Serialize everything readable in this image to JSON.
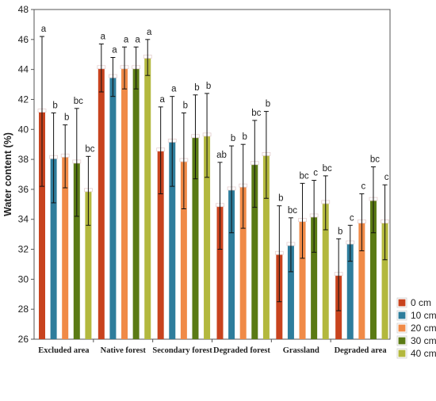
{
  "chart_data": {
    "type": "bar",
    "title": "",
    "xlabel": "",
    "ylabel": "Water content (%)",
    "ylim": [
      26,
      48
    ],
    "yticks": [
      26,
      28,
      30,
      32,
      34,
      36,
      38,
      40,
      42,
      44,
      46,
      48
    ],
    "grid": false,
    "legend_position": "bottom-right",
    "categories": [
      "Excluded area",
      "Native forest",
      "Secondary forest",
      "Degraded forest",
      "Grassland",
      "Degraded area"
    ],
    "series": [
      {
        "name": "0 cm",
        "color": "#c8431e",
        "values": [
          41.2,
          44.1,
          38.6,
          34.9,
          31.7,
          30.3
        ],
        "errors": [
          5.0,
          1.6,
          2.9,
          2.9,
          3.2,
          2.4
        ],
        "letters": [
          "a",
          "a",
          "a",
          "ab",
          "b",
          "b"
        ]
      },
      {
        "name": "10 cm",
        "color": "#2e7d9c",
        "values": [
          38.1,
          43.5,
          39.2,
          36.0,
          32.3,
          32.4
        ],
        "errors": [
          3.0,
          1.3,
          3.0,
          2.9,
          1.8,
          1.2
        ],
        "letters": [
          "b",
          "a",
          "a",
          "b",
          "bc",
          "c"
        ]
      },
      {
        "name": "20 cm",
        "color": "#f08a47",
        "values": [
          38.2,
          44.1,
          37.9,
          36.2,
          33.9,
          33.8
        ],
        "errors": [
          2.1,
          1.4,
          3.2,
          2.8,
          2.5,
          1.9
        ],
        "letters": [
          "b",
          "a",
          "b",
          "b",
          "bc",
          "c"
        ]
      },
      {
        "name": "30 cm",
        "color": "#5a7a14",
        "values": [
          37.8,
          44.1,
          39.5,
          37.7,
          34.2,
          35.3
        ],
        "errors": [
          3.6,
          1.4,
          2.8,
          2.9,
          2.4,
          2.2
        ],
        "letters": [
          "bc",
          "a",
          "b",
          "bc",
          "c",
          "bc"
        ]
      },
      {
        "name": "40 cm",
        "color": "#b3b83e",
        "values": [
          35.9,
          44.8,
          39.6,
          38.3,
          35.1,
          33.8
        ],
        "errors": [
          2.3,
          1.2,
          2.8,
          2.9,
          1.8,
          2.5
        ],
        "letters": [
          "bc",
          "a",
          "b",
          "b",
          "bc",
          "c"
        ]
      }
    ]
  }
}
